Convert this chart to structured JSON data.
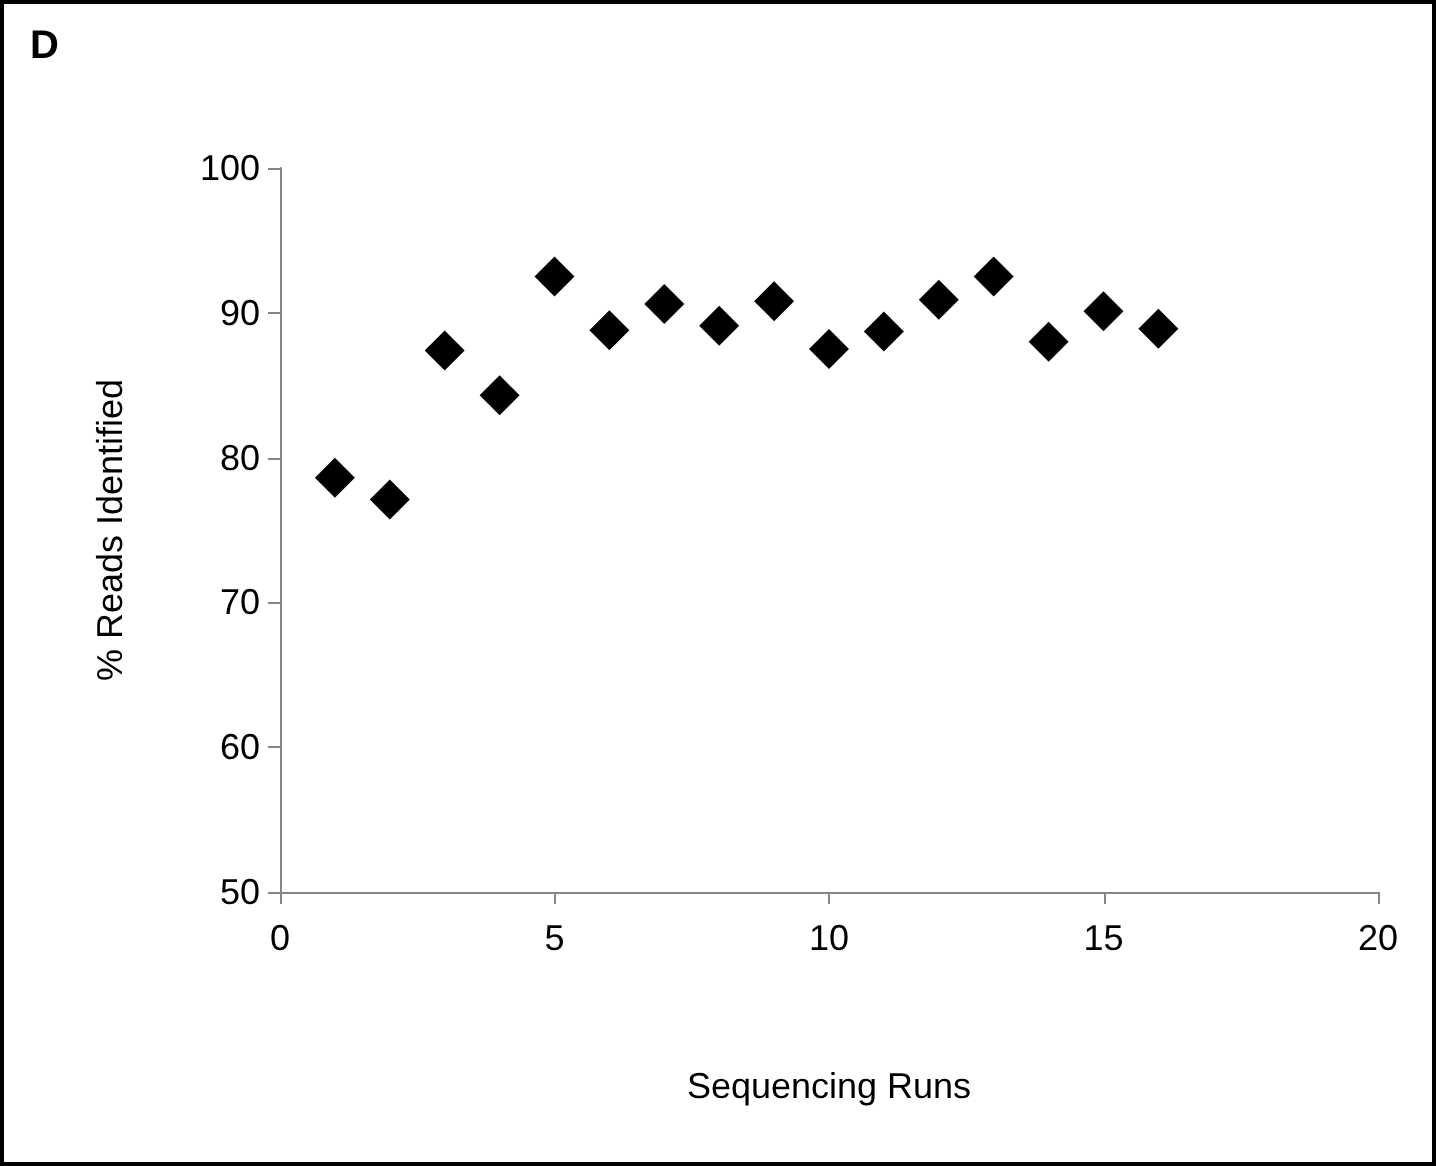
{
  "chart_data": {
    "type": "scatter",
    "title": "D",
    "xlabel": "Sequencing Runs",
    "ylabel": "% Reads Identified",
    "x": [
      1,
      2,
      3,
      4,
      5,
      6,
      7,
      8,
      9,
      10,
      11,
      12,
      13,
      14,
      15,
      16
    ],
    "values": [
      78.6,
      77.1,
      87.4,
      84.3,
      92.5,
      88.8,
      90.6,
      89.1,
      90.8,
      87.5,
      88.7,
      90.9,
      92.5,
      88.0,
      90.1,
      88.9
    ],
    "color": "#000000",
    "marker": "diamond",
    "xlim": [
      0,
      20
    ],
    "xticks": [
      0,
      5,
      10,
      15,
      20
    ],
    "ylim": [
      50,
      100
    ],
    "yticks": [
      50,
      60,
      70,
      80,
      90,
      100
    ]
  }
}
